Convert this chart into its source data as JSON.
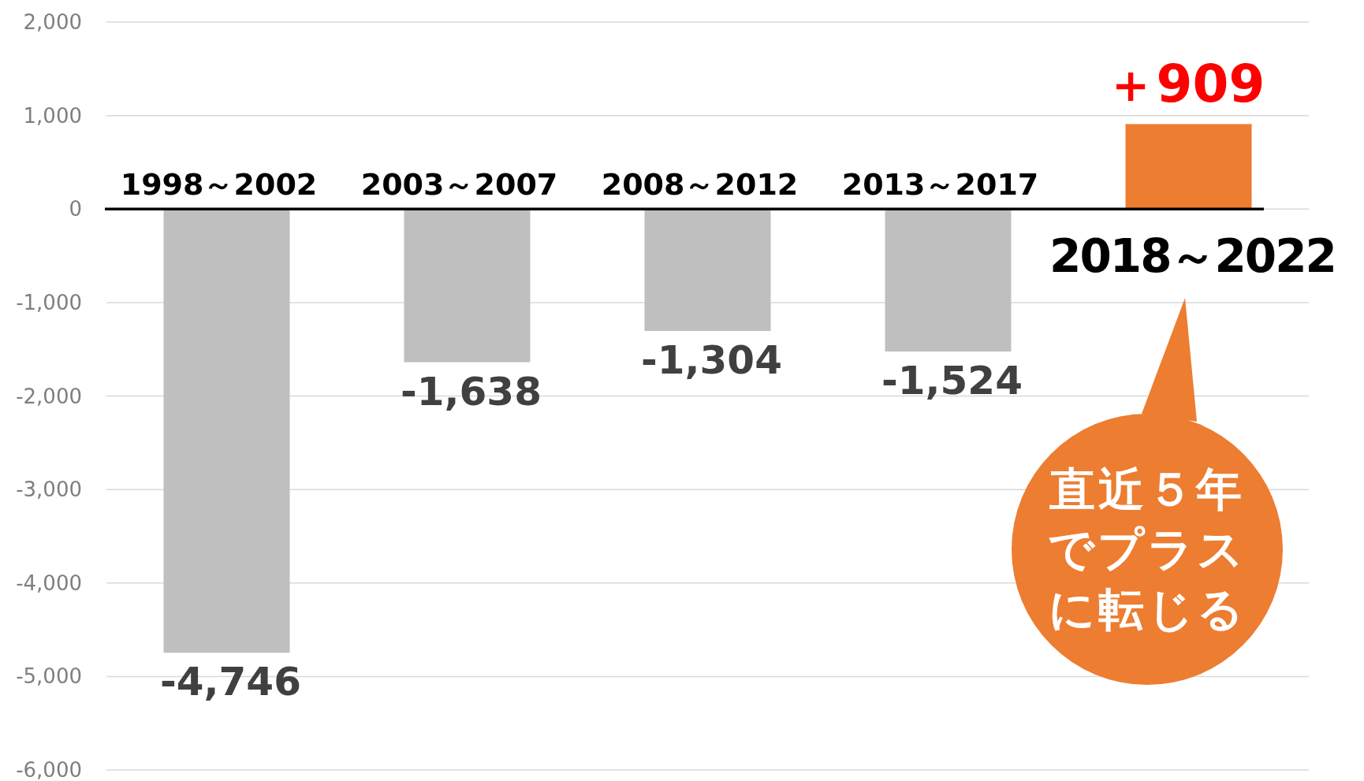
{
  "chart_data": {
    "type": "bar",
    "categories": [
      "1998～2002",
      "2003～2007",
      "2008～2012",
      "2013～2017",
      "2018～2022"
    ],
    "values": [
      -4746,
      -1638,
      -1304,
      -1524,
      909
    ],
    "colors": [
      "#bfbfbf",
      "#bfbfbf",
      "#bfbfbf",
      "#bfbfbf",
      "#ed7d31"
    ],
    "value_labels": [
      "-4,746",
      "-1,638",
      "-1,304",
      "-1,524",
      "＋909"
    ],
    "ylim": [
      -6000,
      2000
    ],
    "yticks": [
      {
        "value": -6000,
        "label": "-6,000"
      },
      {
        "value": -5000,
        "label": "-5,000"
      },
      {
        "value": -4000,
        "label": "-4,000"
      },
      {
        "value": -3000,
        "label": "-3,000"
      },
      {
        "value": -2000,
        "label": "-2,000"
      },
      {
        "value": -1000,
        "label": "-1,000"
      },
      0,
      {
        "value": 1000,
        "label": "1,000"
      },
      {
        "value": 2000,
        "label": "2,000"
      }
    ],
    "grid": "y",
    "annotations": [
      "直近５年でプラスに転じる"
    ]
  }
}
